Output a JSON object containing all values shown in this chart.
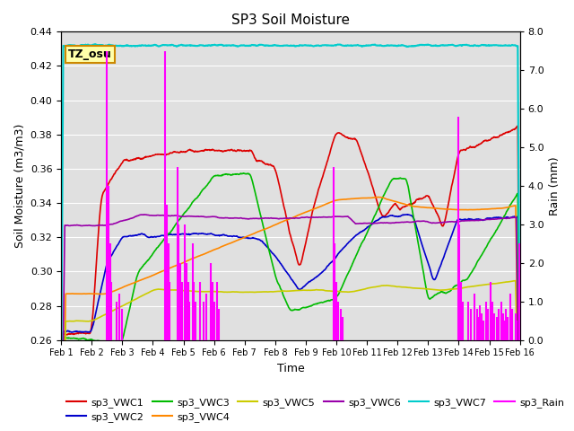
{
  "title": "SP3 Soil Moisture",
  "xlabel": "Time",
  "ylabel_left": "Soil Moisture (m3/m3)",
  "ylabel_right": "Rain (mm)",
  "xlim": [
    0,
    15
  ],
  "ylim_left": [
    0.26,
    0.44
  ],
  "ylim_right": [
    0.0,
    8.0
  ],
  "xtick_labels": [
    "Feb 1",
    "Feb 2",
    "Feb 3",
    "Feb 4",
    "Feb 5",
    "Feb 6",
    "Feb 7",
    "Feb 8",
    "Feb 9",
    "Feb 10",
    "Feb 11",
    "Feb 12",
    "Feb 13",
    "Feb 14",
    "Feb 15",
    "Feb 16"
  ],
  "colors": {
    "sp3_VWC1": "#dd0000",
    "sp3_VWC2": "#0000cc",
    "sp3_VWC3": "#00bb00",
    "sp3_VWC4": "#ff8800",
    "sp3_VWC5": "#cccc00",
    "sp3_VWC6": "#9900aa",
    "sp3_VWC7": "#00cccc",
    "sp3_Rain": "#ff00ff"
  },
  "tz_label": "TZ_osu",
  "tz_bg": "#ffffaa",
  "tz_border": "#cc8800",
  "gray_band_color": "#e0e0e0",
  "grid_color": "#ffffff",
  "figure_bg": "#ffffff"
}
